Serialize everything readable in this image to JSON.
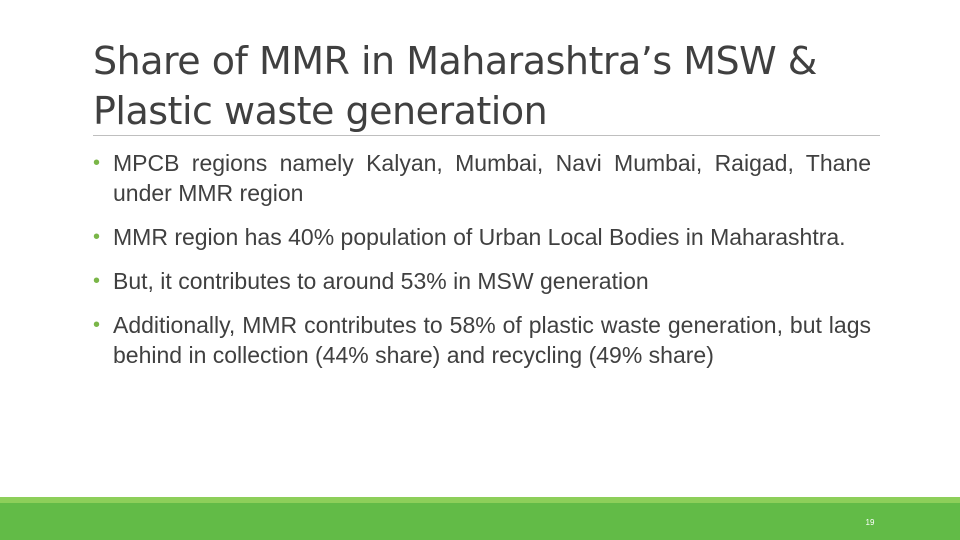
{
  "slide": {
    "title_line1": "Share of MMR in Maharashtra’s MSW &",
    "title_line2": "Plastic waste generation",
    "bullet_symbol": "•",
    "bullets": [
      "MPCB regions namely Kalyan, Mumbai, Navi Mumbai, Raigad, Thane under MMR region",
      "MMR region has 40% population of Urban Local Bodies in Maharashtra.",
      "But, it contributes to around 53% in MSW generation",
      "Additionally, MMR contributes to 58% of plastic waste generation, but lags behind in collection (44% share) and recycling (49% share)"
    ],
    "page_number": "19"
  },
  "colors": {
    "accent": "#62bb47",
    "text": "#404040"
  }
}
